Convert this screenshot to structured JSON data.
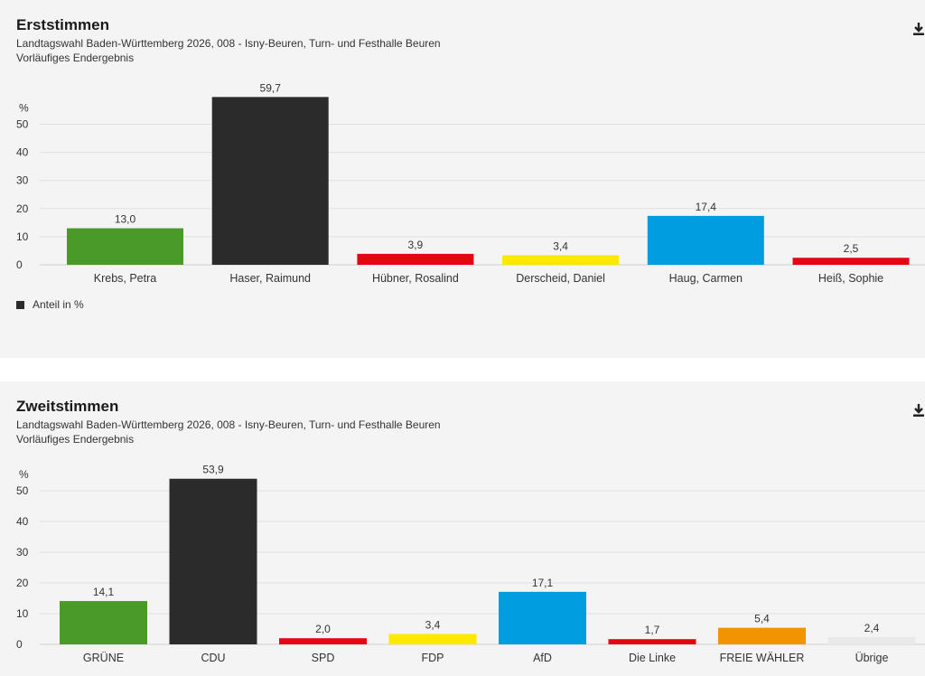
{
  "charts": [
    {
      "title": "Erststimmen",
      "subtitle_1": "Landtagswahl Baden-Württemberg 2026, 008 - Isny-Beuren, Turn- und Festhalle Beuren",
      "subtitle_2": "Vorläufiges Endergebnis",
      "download_icon": "download-icon",
      "legend_label": "Anteil in %",
      "chart_data": {
        "type": "bar",
        "categories": [
          "Krebs, Petra",
          "Haser, Raimund",
          "Hübner, Rosalind",
          "Derscheid, Daniel",
          "Haug, Carmen",
          "Heiß, Sophie"
        ],
        "values": [
          13.0,
          59.7,
          3.9,
          3.4,
          17.4,
          2.5
        ],
        "value_labels": [
          "13,0",
          "59,7",
          "3,9",
          "3,4",
          "17,4",
          "2,5"
        ],
        "colors": [
          "#4a9a2a",
          "#2b2b2b",
          "#e30613",
          "#fde800",
          "#009ee0",
          "#e30613"
        ],
        "ylabel": "%",
        "ylim": [
          0,
          60
        ],
        "yticks": [
          0,
          10,
          20,
          30,
          40,
          50
        ],
        "grid": true,
        "legend": "bottom-left"
      }
    },
    {
      "title": "Zweitstimmen",
      "subtitle_1": "Landtagswahl Baden-Württemberg 2026, 008 - Isny-Beuren, Turn- und Festhalle Beuren",
      "subtitle_2": "Vorläufiges Endergebnis",
      "download_icon": "download-icon",
      "chart_data": {
        "type": "bar",
        "categories": [
          "GRÜNE",
          "CDU",
          "SPD",
          "FDP",
          "AfD",
          "Die Linke",
          "FREIE WÄHLER",
          "Übrige"
        ],
        "values": [
          14.1,
          53.9,
          2.0,
          3.4,
          17.1,
          1.7,
          5.4,
          2.4
        ],
        "value_labels": [
          "14,1",
          "53,9",
          "2,0",
          "3,4",
          "17,1",
          "1,7",
          "5,4",
          "2,4"
        ],
        "colors": [
          "#4a9a2a",
          "#2b2b2b",
          "#e30613",
          "#fde800",
          "#009ee0",
          "#e30613",
          "#f29400",
          "#e9e9e9"
        ],
        "ylabel": "%",
        "ylim": [
          0,
          60
        ],
        "yticks": [
          0,
          10,
          20,
          30,
          40,
          50
        ],
        "grid": true
      }
    }
  ]
}
